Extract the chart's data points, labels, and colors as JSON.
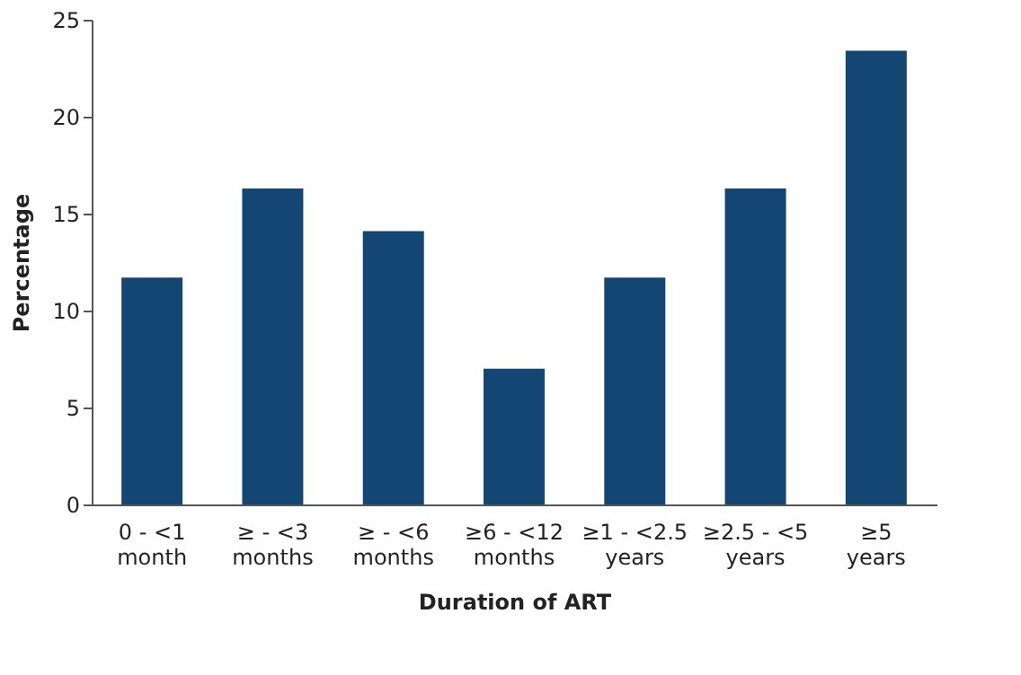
{
  "chart_data": {
    "type": "bar",
    "xlabel": "Duration of ART",
    "ylabel": "Percentage",
    "categories": [
      "0 - <1 month",
      "≥ - <3 months",
      "≥ - <6 months",
      "≥6 - <12 months",
      "≥1 - <2.5 years",
      "≥2.5 - <5 years",
      "≥5 years"
    ],
    "values": [
      11.7,
      16.3,
      14.1,
      7.0,
      11.7,
      16.3,
      23.4
    ],
    "color": "#134673",
    "ylim": [
      0,
      25
    ],
    "yticks": [
      0,
      5,
      10,
      15,
      20,
      25
    ],
    "grid": false
  }
}
